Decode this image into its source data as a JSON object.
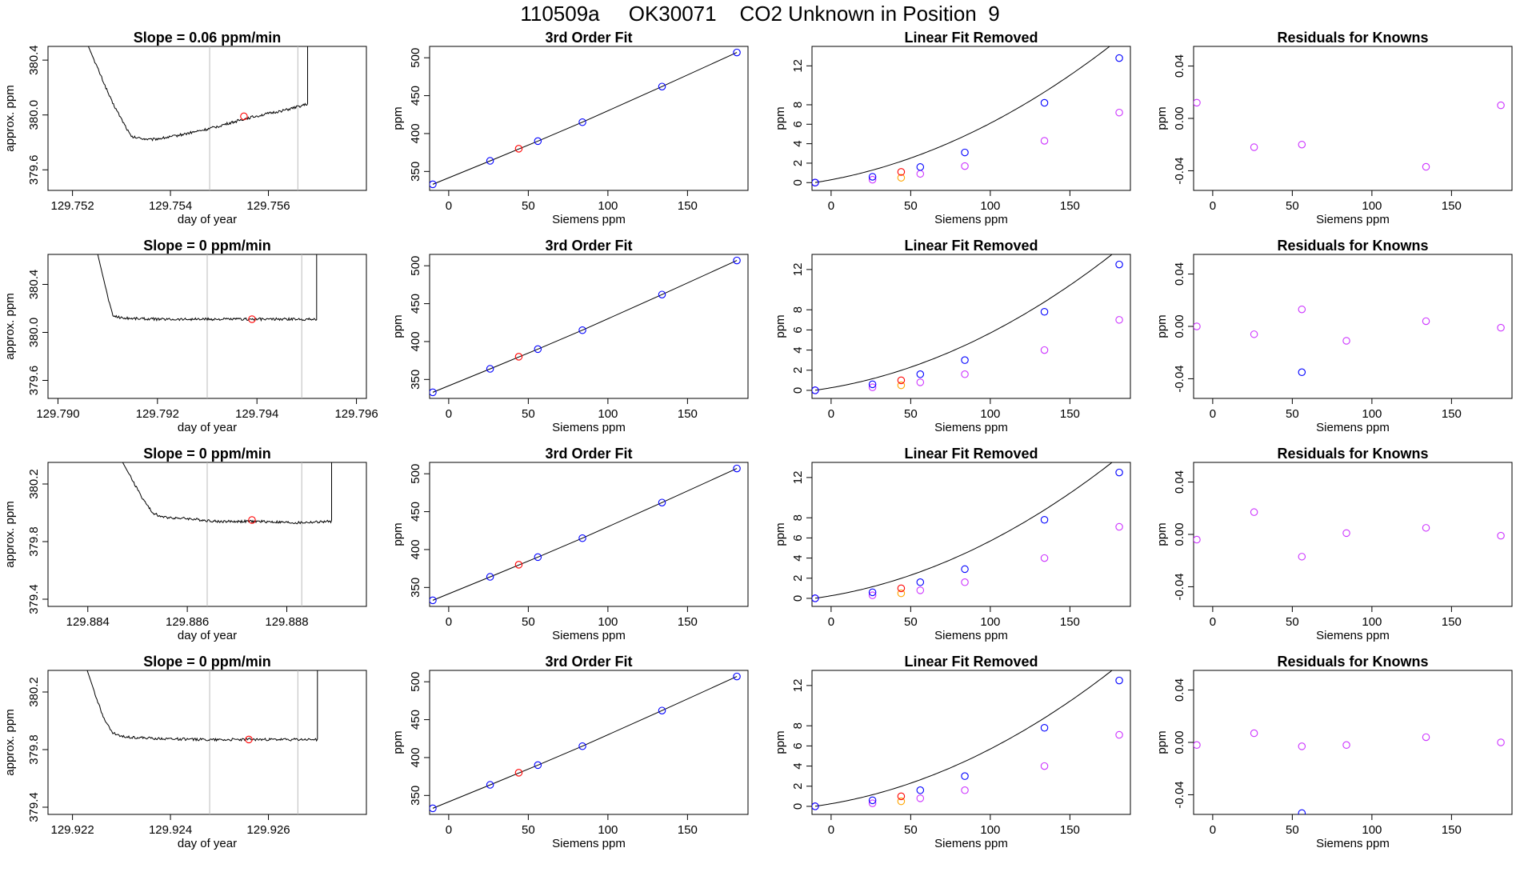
{
  "page": {
    "suptitle": "110509a     OK30071    CO2 Unknown in Position  9"
  },
  "chart_data": [
    {
      "type": "line",
      "row": 1,
      "title": "Slope =  0.06  ppm/min",
      "xlabel": "day of year",
      "ylabel": "approx. ppm",
      "xlim": [
        129.7515,
        129.758
      ],
      "ylim": [
        379.45,
        380.5
      ],
      "xticks": [
        129.752,
        129.754,
        129.756
      ],
      "xtick_labels": [
        "129.752",
        "129.754",
        "129.756"
      ],
      "yticks": [
        379.6,
        380.0,
        380.4
      ],
      "ytick_labels": [
        "379.6",
        "380.0",
        "380.4"
      ],
      "vlines": [
        129.7548,
        129.7566
      ],
      "trace": {
        "start": 129.7523,
        "end": 129.7571,
        "x": [
          129.7523,
          129.7528,
          129.7532,
          129.7536,
          129.754,
          129.7548,
          129.7556,
          129.7564,
          129.7568
        ],
        "y": [
          380.52,
          380.1,
          379.84,
          379.82,
          379.84,
          379.9,
          379.98,
          380.04,
          380.08
        ]
      },
      "highlight": {
        "x": 129.7555,
        "y": 379.99,
        "color": "#ff0000"
      }
    },
    {
      "type": "scatter",
      "row": 1,
      "title": "3rd Order Fit",
      "xlabel": "Siemens ppm",
      "ylabel": "ppm",
      "xlim": [
        -12,
        188
      ],
      "ylim": [
        325,
        515
      ],
      "xticks": [
        0,
        50,
        100,
        150
      ],
      "yticks": [
        350,
        400,
        450,
        500
      ],
      "knowns": {
        "x": [
          -10,
          26,
          56,
          84,
          134,
          181
        ],
        "y": [
          333,
          364,
          390,
          415,
          462,
          507
        ],
        "color": "#0000ff"
      },
      "unknown": {
        "x": 44,
        "y": 380,
        "color": "#ff0000"
      }
    },
    {
      "type": "scatter",
      "row": 1,
      "title": "Linear Fit Removed",
      "xlabel": "Siemens ppm",
      "ylabel": "ppm",
      "xlim": [
        -12,
        188
      ],
      "ylim": [
        -0.8,
        14
      ],
      "xticks": [
        0,
        50,
        100,
        150
      ],
      "yticks": [
        0,
        2,
        4,
        6,
        8,
        12
      ],
      "curve": {
        "a": 0.00027,
        "b": 0.0257,
        "c": 0.01
      },
      "knowns": {
        "x": [
          -10,
          26,
          56,
          84,
          134,
          181
        ],
        "y": [
          0.0,
          0.6,
          1.6,
          3.1,
          8.2,
          12.8
        ],
        "color": "#0000ff"
      },
      "unknown": {
        "x": 44,
        "y": 1.1,
        "color": "#ff0000"
      },
      "linear_removed": {
        "x": [
          -10,
          26,
          56,
          84,
          134,
          181
        ],
        "y": [
          0.0,
          0.3,
          0.9,
          1.7,
          4.3,
          7.2
        ],
        "color": "#cc33ff"
      },
      "unknown_linear": {
        "x": 44,
        "y": 0.5,
        "color": "#ffa500"
      }
    },
    {
      "type": "scatter",
      "row": 1,
      "title": "Residuals for Knowns",
      "xlabel": "Siemens ppm",
      "ylabel": "ppm",
      "xlim": [
        -12,
        188
      ],
      "ylim": [
        -0.055,
        0.055
      ],
      "xticks": [
        0,
        50,
        100,
        150
      ],
      "yticks": [
        -0.04,
        0.0,
        0.04
      ],
      "ytick_labels": [
        "-0.04",
        "0.00",
        "0.04"
      ],
      "points": {
        "x": [
          -10,
          26,
          56,
          134,
          181
        ],
        "y": [
          0.012,
          -0.022,
          -0.02,
          -0.037,
          0.01
        ],
        "color": "#cc33ff"
      },
      "outliers": {
        "x": [],
        "y": [],
        "color": "#0000ff"
      }
    },
    {
      "type": "line",
      "row": 2,
      "title": "Slope =  0  ppm/min",
      "xlabel": "day of year",
      "ylabel": "approx. ppm",
      "xlim": [
        129.7898,
        129.7962
      ],
      "ylim": [
        379.45,
        380.65
      ],
      "xticks": [
        129.79,
        129.792,
        129.794,
        129.796
      ],
      "xtick_labels": [
        "129.790",
        "129.792",
        "129.794",
        "129.796"
      ],
      "yticks": [
        379.6,
        380.0,
        380.4
      ],
      "ytick_labels": [
        "379.6",
        "380.0",
        "380.4"
      ],
      "vlines": [
        129.793,
        129.7949
      ],
      "trace": {
        "start": 129.7908,
        "end": 129.7952,
        "x": [
          129.7908,
          129.791,
          129.7911,
          129.7913,
          129.792,
          129.793,
          129.794,
          129.7952
        ],
        "y": [
          380.65,
          380.3,
          380.14,
          380.12,
          380.11,
          380.11,
          380.11,
          380.11
        ]
      },
      "highlight": {
        "x": 129.7939,
        "y": 380.11,
        "color": "#ff0000"
      }
    },
    {
      "type": "scatter",
      "row": 2,
      "title": "3rd Order Fit",
      "xlabel": "Siemens ppm",
      "ylabel": "ppm",
      "xlim": [
        -12,
        188
      ],
      "ylim": [
        325,
        515
      ],
      "xticks": [
        0,
        50,
        100,
        150
      ],
      "yticks": [
        350,
        400,
        450,
        500
      ],
      "knowns": {
        "x": [
          -10,
          26,
          56,
          84,
          134,
          181
        ],
        "y": [
          333,
          364,
          390,
          415,
          462,
          507
        ],
        "color": "#0000ff"
      },
      "unknown": {
        "x": 44,
        "y": 380,
        "color": "#ff0000"
      }
    },
    {
      "type": "scatter",
      "row": 2,
      "title": "Linear Fit Removed",
      "xlabel": "Siemens ppm",
      "ylabel": "ppm",
      "xlim": [
        -12,
        188
      ],
      "ylim": [
        -0.8,
        13.5
      ],
      "xticks": [
        0,
        50,
        100,
        150
      ],
      "yticks": [
        0,
        2,
        4,
        6,
        8,
        12
      ],
      "curve": {
        "a": 0.00027,
        "b": 0.022,
        "c": 0.01
      },
      "knowns": {
        "x": [
          -10,
          26,
          56,
          84,
          134,
          181
        ],
        "y": [
          0.0,
          0.6,
          1.6,
          3.0,
          7.8,
          12.5
        ],
        "color": "#0000ff"
      },
      "unknown": {
        "x": 44,
        "y": 1.0,
        "color": "#ff0000"
      },
      "linear_removed": {
        "x": [
          -10,
          26,
          56,
          84,
          134,
          181
        ],
        "y": [
          0.0,
          0.3,
          0.8,
          1.6,
          4.0,
          7.0
        ],
        "color": "#cc33ff"
      },
      "unknown_linear": {
        "x": 44,
        "y": 0.5,
        "color": "#ffa500"
      }
    },
    {
      "type": "scatter",
      "row": 2,
      "title": "Residuals for Knowns",
      "xlabel": "Siemens ppm",
      "ylabel": "ppm",
      "xlim": [
        -12,
        188
      ],
      "ylim": [
        -0.055,
        0.055
      ],
      "xticks": [
        0,
        50,
        100,
        150
      ],
      "yticks": [
        -0.04,
        0.0,
        0.04
      ],
      "ytick_labels": [
        "-0.04",
        "0.00",
        "0.04"
      ],
      "points": {
        "x": [
          -10,
          26,
          56,
          84,
          134,
          181
        ],
        "y": [
          0.0,
          -0.006,
          0.013,
          -0.011,
          0.004,
          -0.001
        ],
        "color": "#cc33ff"
      },
      "outliers": {
        "x": [
          56
        ],
        "y": [
          -0.035
        ],
        "color": "#0000ff"
      }
    },
    {
      "type": "line",
      "row": 3,
      "title": "Slope =  0  ppm/min",
      "xlabel": "day of year",
      "ylabel": "approx. ppm",
      "xlim": [
        129.8832,
        129.8896
      ],
      "ylim": [
        379.35,
        380.35
      ],
      "xticks": [
        129.884,
        129.886,
        129.888
      ],
      "xtick_labels": [
        "129.884",
        "129.886",
        "129.888"
      ],
      "yticks": [
        379.4,
        379.8,
        380.2
      ],
      "ytick_labels": [
        "379.4",
        "379.8",
        "380.2"
      ],
      "vlines": [
        129.8864,
        129.8883
      ],
      "trace": {
        "start": 129.8847,
        "end": 129.8889,
        "x": [
          129.8847,
          129.8851,
          129.8853,
          129.8855,
          129.886,
          129.8866,
          129.8875,
          129.8882,
          129.8889
        ],
        "y": [
          380.35,
          380.1,
          380.0,
          379.97,
          379.96,
          379.94,
          379.94,
          379.93,
          379.94
        ]
      },
      "highlight": {
        "x": 129.8873,
        "y": 379.95,
        "color": "#ff0000"
      }
    },
    {
      "type": "scatter",
      "row": 3,
      "title": "3rd Order Fit",
      "xlabel": "Siemens ppm",
      "ylabel": "ppm",
      "xlim": [
        -12,
        188
      ],
      "ylim": [
        325,
        515
      ],
      "xticks": [
        0,
        50,
        100,
        150
      ],
      "yticks": [
        350,
        400,
        450,
        500
      ],
      "knowns": {
        "x": [
          -10,
          26,
          56,
          84,
          134,
          181
        ],
        "y": [
          333,
          364,
          390,
          415,
          462,
          507
        ],
        "color": "#0000ff"
      },
      "unknown": {
        "x": 44,
        "y": 380,
        "color": "#ff0000"
      }
    },
    {
      "type": "scatter",
      "row": 3,
      "title": "Linear Fit Removed",
      "xlabel": "Siemens ppm",
      "ylabel": "ppm",
      "xlim": [
        -12,
        188
      ],
      "ylim": [
        -0.8,
        13.5
      ],
      "xticks": [
        0,
        50,
        100,
        150
      ],
      "yticks": [
        0,
        2,
        4,
        6,
        8,
        12
      ],
      "curve": {
        "a": 0.00027,
        "b": 0.022,
        "c": 0.01
      },
      "knowns": {
        "x": [
          -10,
          26,
          56,
          84,
          134,
          181
        ],
        "y": [
          0.0,
          0.6,
          1.6,
          2.9,
          7.8,
          12.5
        ],
        "color": "#0000ff"
      },
      "unknown": {
        "x": 44,
        "y": 1.0,
        "color": "#ff0000"
      },
      "linear_removed": {
        "x": [
          -10,
          26,
          56,
          84,
          134,
          181
        ],
        "y": [
          0.0,
          0.3,
          0.8,
          1.6,
          4.0,
          7.1
        ],
        "color": "#cc33ff"
      },
      "unknown_linear": {
        "x": 44,
        "y": 0.5,
        "color": "#ffa500"
      }
    },
    {
      "type": "scatter",
      "row": 3,
      "title": "Residuals for Knowns",
      "xlabel": "Siemens ppm",
      "ylabel": "ppm",
      "xlim": [
        -12,
        188
      ],
      "ylim": [
        -0.055,
        0.055
      ],
      "xticks": [
        0,
        50,
        100,
        150
      ],
      "yticks": [
        -0.04,
        0.0,
        0.04
      ],
      "ytick_labels": [
        "-0.04",
        "0.00",
        "0.04"
      ],
      "points": {
        "x": [
          -10,
          26,
          56,
          84,
          134,
          181
        ],
        "y": [
          -0.004,
          0.017,
          -0.017,
          0.001,
          0.005,
          -0.001
        ],
        "color": "#cc33ff"
      },
      "outliers": {
        "x": [],
        "y": [],
        "color": "#0000ff"
      }
    },
    {
      "type": "line",
      "row": 4,
      "title": "Slope =  0  ppm/min",
      "xlabel": "day of year",
      "ylabel": "approx. ppm",
      "xlim": [
        129.9215,
        129.928
      ],
      "ylim": [
        379.35,
        380.35
      ],
      "xticks": [
        129.922,
        129.924,
        129.926
      ],
      "xtick_labels": [
        "129.922",
        "129.924",
        "129.926"
      ],
      "yticks": [
        379.4,
        379.8,
        380.2
      ],
      "ytick_labels": [
        "379.4",
        "379.8",
        "380.2"
      ],
      "vlines": [
        129.9248,
        129.9266
      ],
      "trace": {
        "start": 129.9223,
        "end": 129.927,
        "x": [
          129.9223,
          129.9226,
          129.9228,
          129.923,
          129.9235,
          129.9245,
          129.9255,
          129.9265,
          129.927
        ],
        "y": [
          380.35,
          380.05,
          379.92,
          379.89,
          379.88,
          379.87,
          379.87,
          379.87,
          379.87
        ]
      },
      "highlight": {
        "x": 129.9256,
        "y": 379.87,
        "color": "#ff0000"
      }
    },
    {
      "type": "scatter",
      "row": 4,
      "title": "3rd Order Fit",
      "xlabel": "Siemens ppm",
      "ylabel": "ppm",
      "xlim": [
        -12,
        188
      ],
      "ylim": [
        325,
        515
      ],
      "xticks": [
        0,
        50,
        100,
        150
      ],
      "yticks": [
        350,
        400,
        450,
        500
      ],
      "knowns": {
        "x": [
          -10,
          26,
          56,
          84,
          134,
          181
        ],
        "y": [
          333,
          364,
          390,
          415,
          462,
          507
        ],
        "color": "#0000ff"
      },
      "unknown": {
        "x": 44,
        "y": 380,
        "color": "#ff0000"
      }
    },
    {
      "type": "scatter",
      "row": 4,
      "title": "Linear Fit Removed",
      "xlabel": "Siemens ppm",
      "ylabel": "ppm",
      "xlim": [
        -12,
        188
      ],
      "ylim": [
        -0.8,
        13.5
      ],
      "xticks": [
        0,
        50,
        100,
        150
      ],
      "yticks": [
        0,
        2,
        4,
        6,
        8,
        12
      ],
      "curve": {
        "a": 0.00027,
        "b": 0.022,
        "c": 0.01
      },
      "knowns": {
        "x": [
          -10,
          26,
          56,
          84,
          134,
          181
        ],
        "y": [
          0.0,
          0.6,
          1.6,
          3.0,
          7.8,
          12.5
        ],
        "color": "#0000ff"
      },
      "unknown": {
        "x": 44,
        "y": 1.0,
        "color": "#ff0000"
      },
      "linear_removed": {
        "x": [
          -10,
          26,
          56,
          84,
          134,
          181
        ],
        "y": [
          0.0,
          0.3,
          0.8,
          1.6,
          4.0,
          7.1
        ],
        "color": "#cc33ff"
      },
      "unknown_linear": {
        "x": 44,
        "y": 0.5,
        "color": "#ffa500"
      }
    },
    {
      "type": "scatter",
      "row": 4,
      "title": "Residuals for Knowns",
      "xlabel": "Siemens ppm",
      "ylabel": "ppm",
      "xlim": [
        -12,
        188
      ],
      "ylim": [
        -0.055,
        0.055
      ],
      "xticks": [
        0,
        50,
        100,
        150
      ],
      "yticks": [
        -0.04,
        0.0,
        0.04
      ],
      "ytick_labels": [
        "-0.04",
        "0.00",
        "0.04"
      ],
      "points": {
        "x": [
          -10,
          26,
          56,
          84,
          134,
          181
        ],
        "y": [
          -0.002,
          0.007,
          -0.003,
          -0.002,
          0.004,
          0.0
        ],
        "color": "#cc33ff"
      },
      "outliers": {
        "x": [
          56
        ],
        "y": [
          -0.054
        ],
        "color": "#0000ff"
      }
    }
  ]
}
